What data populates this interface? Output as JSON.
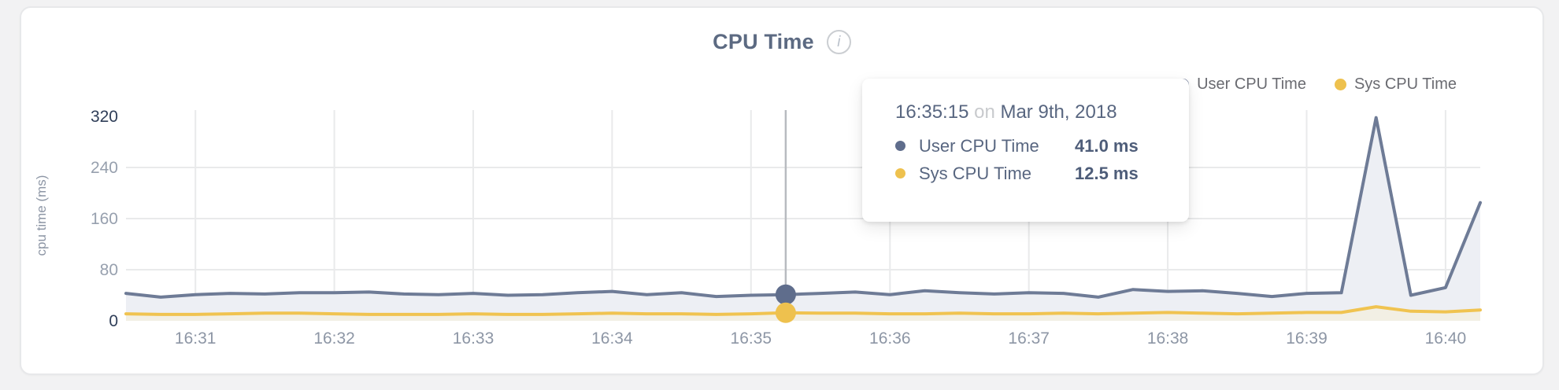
{
  "colors": {
    "page_bg": "#f2f2f3",
    "card_bg": "#ffffff",
    "grid": "#e9eaeb",
    "highlight_line": "#b8bbc0",
    "axis_tick_muted": "#97a0ae",
    "axis_tick_emphasis": "#2f3e58",
    "x_tick": "#8d96a5"
  },
  "header": {
    "title": "CPU Time",
    "info_icon_glyph": "i"
  },
  "tooltip": {
    "time": "16:35:15",
    "connector": "on",
    "date": "Mar 9th, 2018",
    "rows": [
      {
        "label": "User CPU Time",
        "value": "41.0 ms",
        "color": "#5f6d8c"
      },
      {
        "label": "Sys CPU Time",
        "value": "12.5 ms",
        "color": "#eec14e"
      }
    ]
  },
  "chart_data": {
    "type": "area",
    "title": "CPU Time",
    "xlabel": "",
    "ylabel": "cpu time (ms)",
    "ylim": [
      0,
      330
    ],
    "grid": true,
    "legend_position": "top-right",
    "y_ticks": [
      {
        "label": "0",
        "value": 0,
        "grid": false,
        "emphasis": true
      },
      {
        "label": "80",
        "value": 80,
        "grid": true,
        "emphasis": false
      },
      {
        "label": "160",
        "value": 160,
        "grid": true,
        "emphasis": false
      },
      {
        "label": "240",
        "value": 240,
        "grid": true,
        "emphasis": false
      },
      {
        "label": "320",
        "value": 320,
        "grid": false,
        "emphasis": true
      }
    ],
    "x_ticks": [
      {
        "label": "16:31",
        "sec": 60
      },
      {
        "label": "16:32",
        "sec": 120
      },
      {
        "label": "16:33",
        "sec": 180
      },
      {
        "label": "16:34",
        "sec": 240
      },
      {
        "label": "16:35",
        "sec": 300
      },
      {
        "label": "16:36",
        "sec": 360
      },
      {
        "label": "16:37",
        "sec": 420
      },
      {
        "label": "16:38",
        "sec": 480
      },
      {
        "label": "16:39",
        "sec": 540
      },
      {
        "label": "16:40",
        "sec": 600
      }
    ],
    "start_sec": 30,
    "step_sec": 15,
    "times": [
      "16:30:30",
      "16:30:45",
      "16:31:00",
      "16:31:15",
      "16:31:30",
      "16:31:45",
      "16:32:00",
      "16:32:15",
      "16:32:30",
      "16:32:45",
      "16:33:00",
      "16:33:15",
      "16:33:30",
      "16:33:45",
      "16:34:00",
      "16:34:15",
      "16:34:30",
      "16:34:45",
      "16:35:00",
      "16:35:15",
      "16:35:30",
      "16:35:45",
      "16:36:00",
      "16:36:15",
      "16:36:30",
      "16:36:45",
      "16:37:00",
      "16:37:15",
      "16:37:30",
      "16:37:45",
      "16:38:00",
      "16:38:15",
      "16:38:30",
      "16:38:45",
      "16:39:00",
      "16:39:15",
      "16:39:30",
      "16:39:45",
      "16:40:00",
      "16:40:15"
    ],
    "series": [
      {
        "name": "User CPU Time",
        "color": "#6e7b96",
        "fill": "#edeff4",
        "dot_color": "#5f6d8c",
        "values": [
          43,
          37,
          41,
          43,
          42,
          44,
          44,
          45,
          42,
          41,
          43,
          40,
          41,
          44,
          46,
          41,
          44,
          38,
          40,
          41,
          43,
          45,
          41,
          47,
          44,
          42,
          44,
          43,
          37,
          49,
          46,
          47,
          43,
          38,
          43,
          44,
          318,
          40,
          52,
          185
        ]
      },
      {
        "name": "Sys CPU Time",
        "color": "#f0c350",
        "fill": "#f2efe4",
        "dot_color": "#eec14e",
        "values": [
          11,
          10,
          10,
          11,
          12,
          12,
          11,
          10,
          10,
          10,
          11,
          10,
          10,
          11,
          12,
          11,
          11,
          10,
          11,
          12.5,
          12,
          12,
          11,
          11,
          12,
          11,
          11,
          12,
          11,
          12,
          13,
          12,
          11,
          12,
          13,
          13,
          22,
          15,
          14,
          17
        ]
      }
    ],
    "highlight": {
      "index": 19,
      "time": "16:35:15"
    }
  }
}
